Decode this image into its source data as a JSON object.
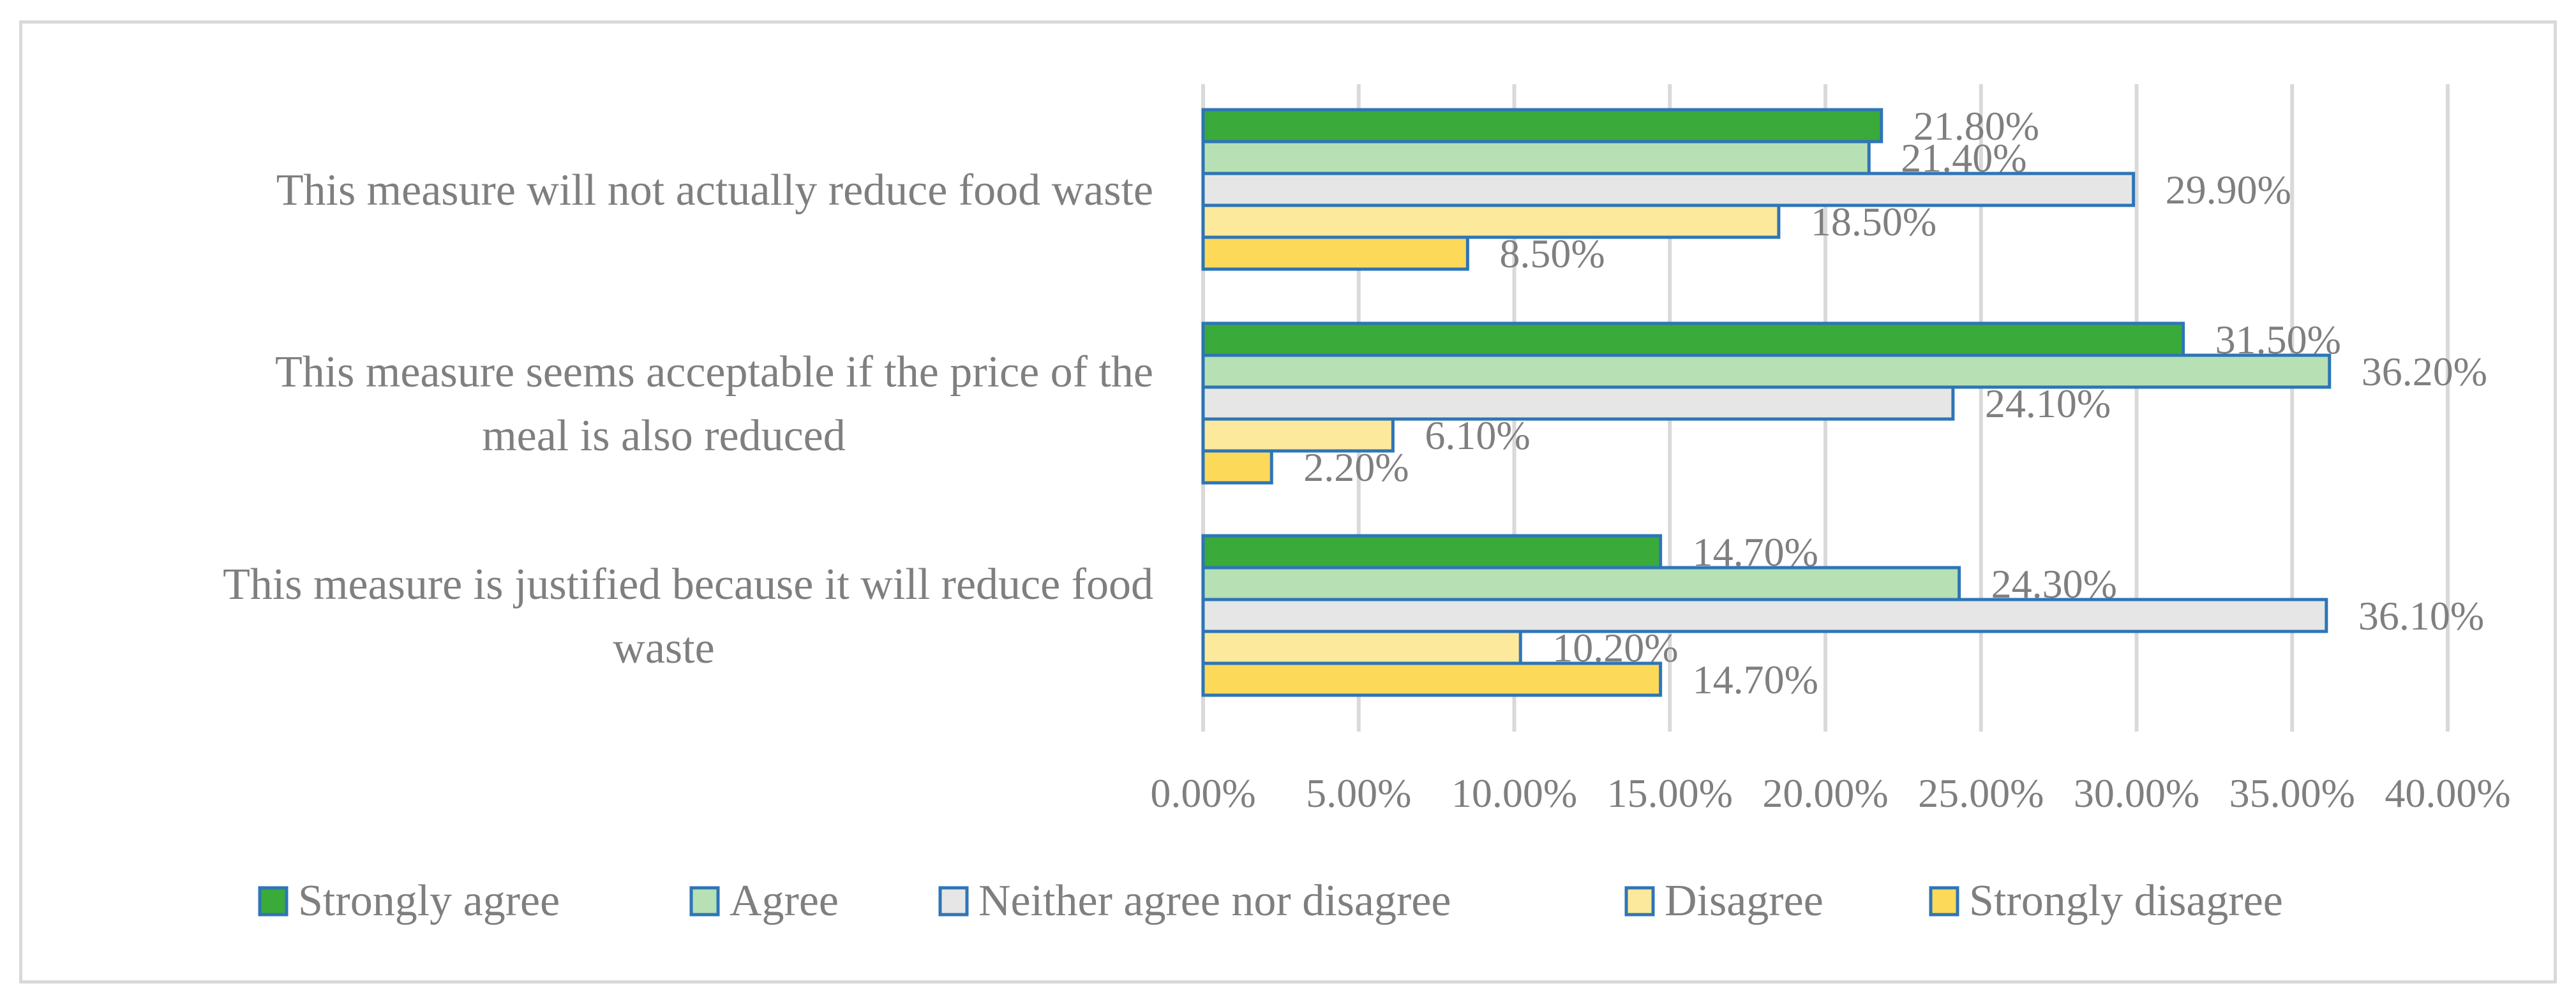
{
  "chart_data": {
    "type": "bar",
    "orientation": "horizontal",
    "title": "",
    "xlabel": "",
    "ylabel": "",
    "xlim": [
      0,
      40
    ],
    "x_ticks": [
      0,
      5,
      10,
      15,
      20,
      25,
      30,
      35,
      40
    ],
    "x_tick_labels": [
      "0.00%",
      "5.00%",
      "10.00%",
      "15.00%",
      "20.00%",
      "25.00%",
      "30.00%",
      "35.00%",
      "40.00%"
    ],
    "grid": true,
    "legend_position": "bottom",
    "categories": [
      {
        "line1": "This measure will not actually reduce food waste",
        "line2": ""
      },
      {
        "line1": "This measure seems acceptable if the price of the",
        "line2": "meal is also reduced"
      },
      {
        "line1": "This measure is justified because it will reduce food",
        "line2": "waste"
      }
    ],
    "series": [
      {
        "name": "Strongly agree",
        "color": "#3aaa3a",
        "values": [
          21.8,
          31.5,
          14.7
        ],
        "labels": [
          "21.80%",
          "31.50%",
          "14.70%"
        ]
      },
      {
        "name": "Agree",
        "color": "#b7e1b4",
        "values": [
          21.4,
          36.2,
          24.3
        ],
        "labels": [
          "21.40%",
          "36.20%",
          "24.30%"
        ]
      },
      {
        "name": "Neither agree nor disagree",
        "color": "#e6e6e6",
        "values": [
          29.9,
          24.1,
          36.1
        ],
        "labels": [
          "29.90%",
          "24.10%",
          "36.10%"
        ]
      },
      {
        "name": "Disagree",
        "color": "#fde99b",
        "values": [
          18.5,
          6.1,
          10.2
        ],
        "labels": [
          "18.50%",
          "6.10%",
          "10.20%"
        ]
      },
      {
        "name": "Strongly disagree",
        "color": "#fdd95a",
        "values": [
          8.5,
          2.2,
          14.7
        ],
        "labels": [
          "8.50%",
          "2.20%",
          "14.70%"
        ]
      }
    ],
    "bar_outline_color": "#2e75b6",
    "gridline_color": "#d9d9d9",
    "text_color": "#7f7f7f"
  }
}
